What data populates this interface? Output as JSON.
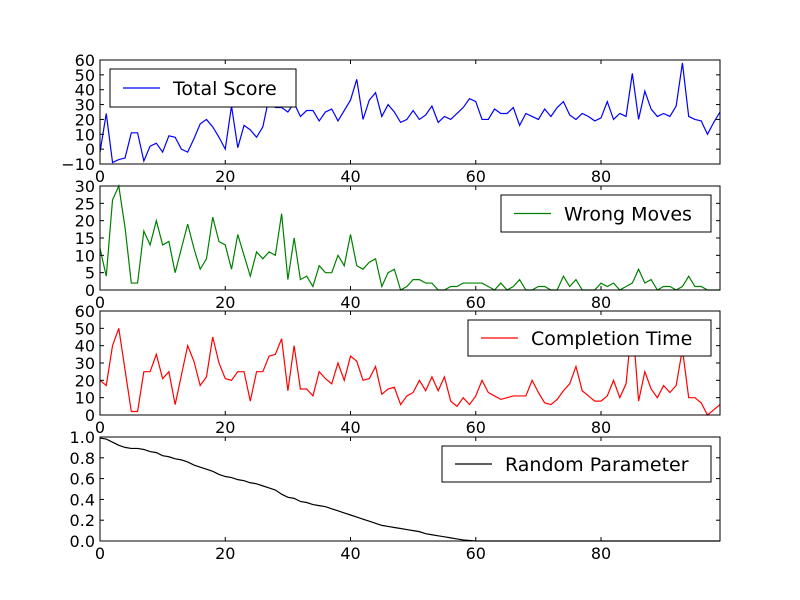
{
  "chart_data": [
    {
      "type": "line",
      "title": "",
      "xlabel": "",
      "ylabel": "",
      "xlim": [
        0,
        99
      ],
      "ylim": [
        -10,
        60
      ],
      "xticks": [
        0,
        20,
        40,
        60,
        80
      ],
      "yticks": [
        -10,
        0,
        10,
        20,
        30,
        40,
        50,
        60
      ],
      "legend": "upper left",
      "series": [
        {
          "name": "Total Score",
          "color": "#0000ff",
          "values": [
            -2,
            24,
            -9,
            -7,
            -6,
            11,
            11,
            -8,
            2,
            4,
            -2,
            9,
            8,
            0,
            -2,
            7,
            17,
            20,
            15,
            8,
            0,
            29,
            1,
            16,
            13,
            8,
            15,
            35,
            28,
            28,
            25,
            31,
            22,
            26,
            26,
            19,
            25,
            27,
            19,
            26,
            33,
            47,
            20,
            33,
            38,
            22,
            30,
            25,
            18,
            20,
            26,
            20,
            23,
            29,
            18,
            22,
            20,
            24,
            28,
            34,
            32,
            20,
            20,
            27,
            24,
            24,
            28,
            16,
            24,
            22,
            20,
            27,
            22,
            28,
            32,
            23,
            20,
            24,
            22,
            19,
            21,
            32,
            20,
            24,
            22,
            51,
            20,
            39,
            27,
            22,
            24,
            22,
            29,
            58,
            22,
            20,
            19,
            10,
            18,
            25
          ]
        }
      ]
    },
    {
      "type": "line",
      "title": "",
      "xlabel": "",
      "ylabel": "",
      "xlim": [
        0,
        99
      ],
      "ylim": [
        0,
        30
      ],
      "xticks": [
        0,
        20,
        40,
        60,
        80
      ],
      "yticks": [
        0,
        5,
        10,
        15,
        20,
        25,
        30
      ],
      "legend": "upper right",
      "series": [
        {
          "name": "Wrong Moves",
          "color": "#008000",
          "values": [
            12,
            4,
            26,
            30,
            18,
            2,
            2,
            17,
            13,
            20,
            13,
            14,
            5,
            12,
            19,
            12,
            6,
            9,
            21,
            14,
            13,
            6,
            16,
            10,
            4,
            11,
            9,
            11,
            10,
            22,
            3,
            15,
            3,
            4,
            1,
            7,
            5,
            5,
            10,
            7,
            16,
            7,
            6,
            8,
            9,
            1,
            5,
            6,
            0,
            1,
            3,
            3,
            2,
            2,
            0,
            0,
            1,
            1,
            2,
            2,
            2,
            2,
            1,
            0,
            2,
            0,
            1,
            3,
            0,
            0,
            1,
            1,
            0,
            0,
            4,
            1,
            3,
            0,
            0,
            0,
            2,
            1,
            2,
            0,
            1,
            2,
            6,
            2,
            3,
            0,
            1,
            1,
            0,
            1,
            4,
            1,
            1,
            0,
            0,
            0
          ]
        }
      ]
    },
    {
      "type": "line",
      "title": "",
      "xlabel": "",
      "ylabel": "",
      "xlim": [
        0,
        99
      ],
      "ylim": [
        0,
        60
      ],
      "xticks": [
        0,
        20,
        40,
        60,
        80
      ],
      "yticks": [
        0,
        10,
        20,
        30,
        40,
        50,
        60
      ],
      "legend": "upper right",
      "series": [
        {
          "name": "Completion Time",
          "color": "#ff0000",
          "values": [
            20,
            17,
            40,
            50,
            26,
            2,
            2,
            25,
            25,
            35,
            21,
            25,
            6,
            23,
            40,
            31,
            17,
            22,
            45,
            30,
            21,
            20,
            25,
            25,
            8,
            25,
            25,
            34,
            35,
            44,
            14,
            40,
            15,
            15,
            11,
            25,
            21,
            18,
            30,
            20,
            34,
            31,
            20,
            21,
            28,
            12,
            15,
            16,
            6,
            11,
            13,
            20,
            14,
            22,
            14,
            22,
            8,
            5,
            10,
            6,
            11,
            20,
            13,
            11,
            9,
            10,
            11,
            11,
            11,
            20,
            13,
            7,
            6,
            9,
            14,
            18,
            28,
            14,
            11,
            8,
            8,
            11,
            20,
            10,
            18,
            55,
            8,
            25,
            15,
            10,
            17,
            13,
            17,
            38,
            10,
            10,
            7,
            0,
            3,
            6
          ]
        }
      ]
    },
    {
      "type": "line",
      "title": "",
      "xlabel": "",
      "ylabel": "",
      "xlim": [
        0,
        99
      ],
      "ylim": [
        0,
        1
      ],
      "xticks": [
        0,
        20,
        40,
        60,
        80
      ],
      "yticks": [
        0.0,
        0.2,
        0.4,
        0.6,
        0.8,
        1.0
      ],
      "legend": "upper right",
      "series": [
        {
          "name": "Random Parameter",
          "color": "#000000",
          "values": [
            0.99,
            0.98,
            0.95,
            0.92,
            0.9,
            0.89,
            0.89,
            0.88,
            0.86,
            0.85,
            0.82,
            0.81,
            0.79,
            0.78,
            0.76,
            0.73,
            0.71,
            0.69,
            0.67,
            0.64,
            0.62,
            0.61,
            0.59,
            0.58,
            0.56,
            0.55,
            0.53,
            0.51,
            0.49,
            0.45,
            0.42,
            0.41,
            0.38,
            0.37,
            0.35,
            0.34,
            0.33,
            0.31,
            0.29,
            0.27,
            0.25,
            0.23,
            0.21,
            0.19,
            0.17,
            0.15,
            0.14,
            0.13,
            0.12,
            0.11,
            0.1,
            0.09,
            0.07,
            0.06,
            0.05,
            0.04,
            0.03,
            0.02,
            0.01,
            0.005,
            0.0,
            0.0,
            0.0,
            0.0,
            0.0,
            0.0,
            0.0,
            0.0,
            0.0,
            0.0,
            0.0,
            0.0,
            0.0,
            0.0,
            0.0,
            0.0,
            0.0,
            0.0,
            0.0,
            0.0,
            0.0,
            0.0,
            0.0,
            0.0,
            0.0,
            0.0,
            0.0,
            0.0,
            0.0,
            0.0,
            0.0,
            0.0,
            0.0,
            0.0,
            0.0,
            0.0,
            0.0,
            0.0,
            0.0,
            0.0
          ]
        }
      ]
    }
  ]
}
